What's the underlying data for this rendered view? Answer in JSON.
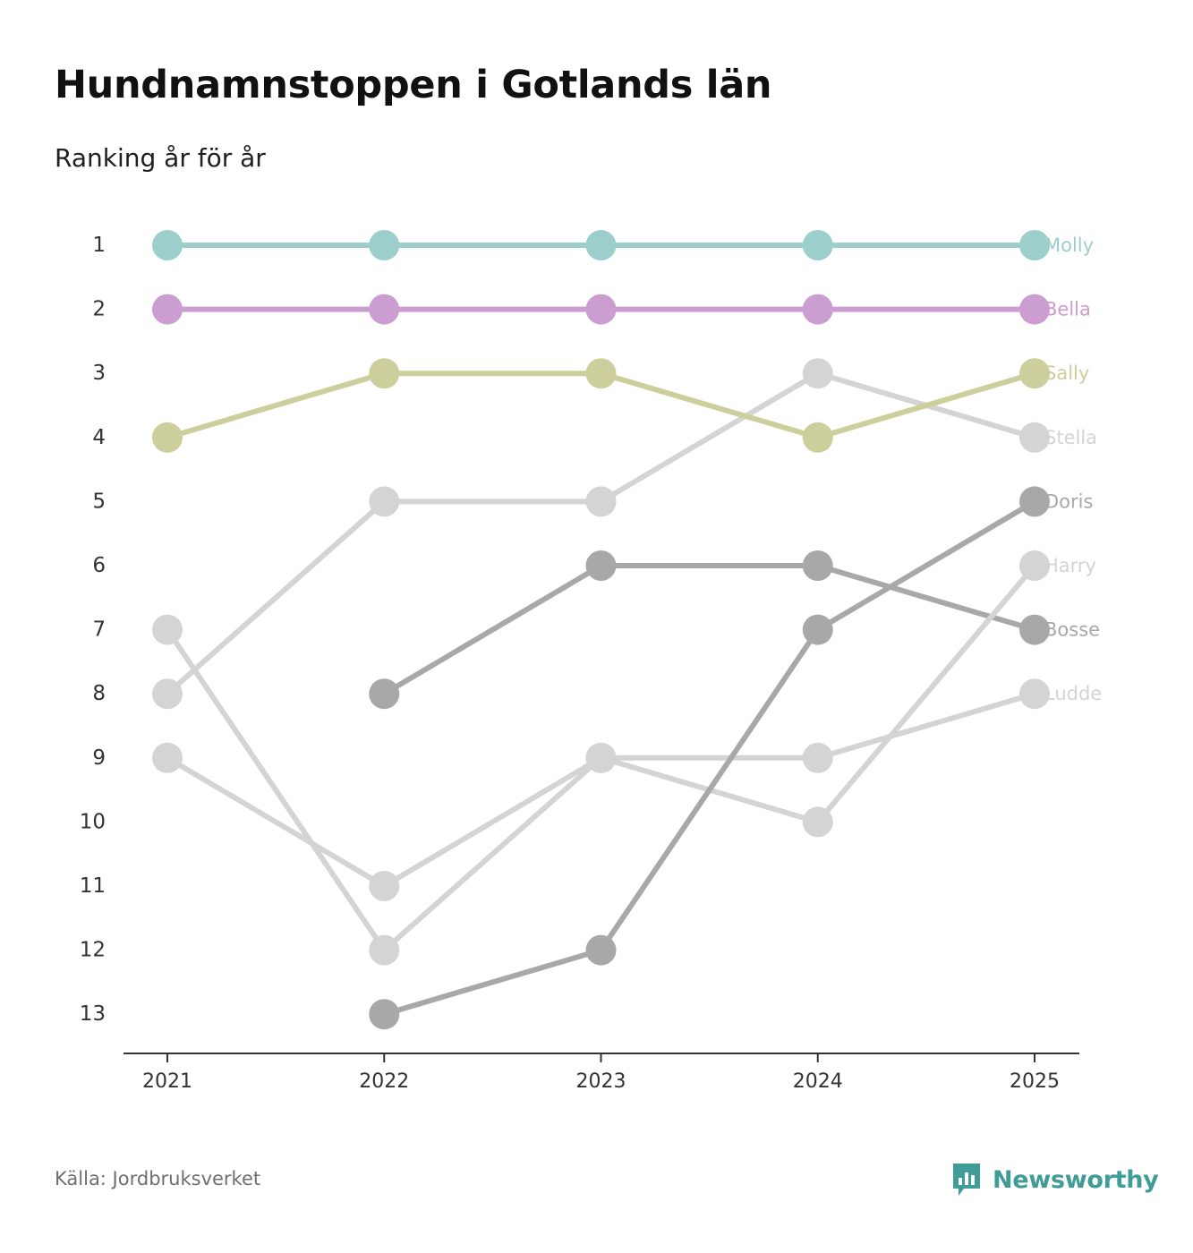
{
  "title": "Hundnamnstoppen i Gotlands län",
  "subtitle": "Ranking år för år",
  "source": "Källa: Jordbruksverket",
  "brand": {
    "name": "Newsworthy",
    "icon": "newsworthy-logo-icon",
    "color": "#3f9c96"
  },
  "chart_data": {
    "type": "line",
    "title": "Hundnamnstoppen i Gotlands län",
    "subtitle": "Ranking år för år",
    "xlabel": "",
    "ylabel": "",
    "categories": [
      "2021",
      "2022",
      "2023",
      "2024",
      "2025"
    ],
    "yticks": [
      "1",
      "2",
      "3",
      "4",
      "5",
      "6",
      "7",
      "8",
      "9",
      "10",
      "11",
      "12",
      "13"
    ],
    "ylim": [
      1,
      13
    ],
    "y_inverted": true,
    "grid": false,
    "series": [
      {
        "name": "Molly",
        "color": "#9ccfcc",
        "values": [
          1,
          1,
          1,
          1,
          1
        ]
      },
      {
        "name": "Bella",
        "color": "#cc9dd0",
        "values": [
          2,
          2,
          2,
          2,
          2
        ]
      },
      {
        "name": "Sally",
        "color": "#cccf9b",
        "values": [
          4,
          3,
          3,
          4,
          3
        ]
      },
      {
        "name": "Stella",
        "color": "#d4d4d4",
        "values": [
          8,
          5,
          5,
          3,
          4
        ]
      },
      {
        "name": "Doris",
        "color": "#a8a8a8",
        "values": [
          null,
          13,
          12,
          7,
          5
        ]
      },
      {
        "name": "Harry",
        "color": "#d4d4d4",
        "values": [
          7,
          12,
          9,
          10,
          6
        ]
      },
      {
        "name": "Bosse",
        "color": "#a8a8a8",
        "values": [
          null,
          8,
          6,
          6,
          7
        ]
      },
      {
        "name": "Ludde",
        "color": "#d4d4d4",
        "values": [
          9,
          11,
          9,
          9,
          8
        ]
      }
    ]
  }
}
